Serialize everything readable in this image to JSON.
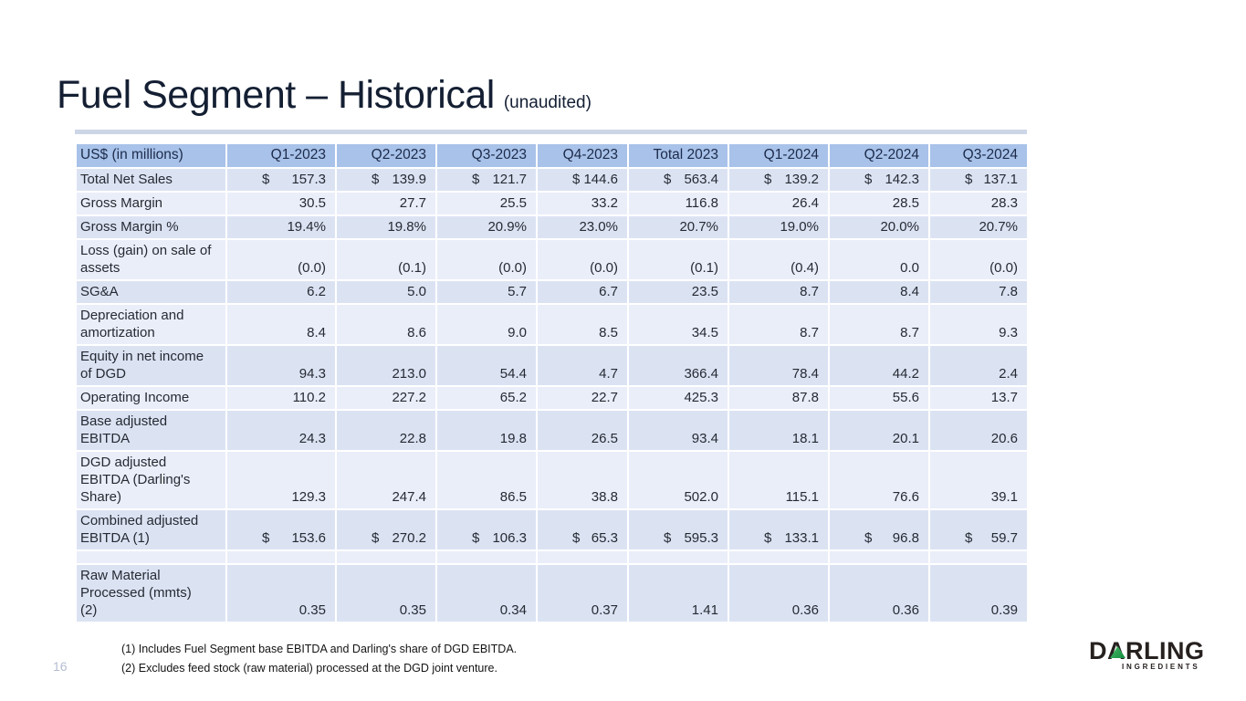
{
  "page": {
    "number": "16"
  },
  "title": {
    "main": "Fuel Segment – Historical",
    "suffix": "(unaudited)"
  },
  "table": {
    "dollar_sign": "$",
    "header": [
      "US$ (in millions)",
      "Q1-2023",
      "Q2-2023",
      "Q3-2023",
      "Q4-2023",
      "Total 2023",
      "Q1-2024",
      "Q2-2024",
      "Q3-2024"
    ],
    "rows": [
      {
        "label": "Total Net Sales",
        "currency": true,
        "values": [
          "157.3",
          "139.9",
          "121.7",
          "144.6",
          "563.4",
          "139.2",
          "142.3",
          "137.1"
        ]
      },
      {
        "label": "Gross Margin",
        "values": [
          "30.5",
          "27.7",
          "25.5",
          "33.2",
          "116.8",
          "26.4",
          "28.5",
          "28.3"
        ]
      },
      {
        "label": "Gross Margin %",
        "values": [
          "19.4%",
          "19.8%",
          "20.9%",
          "23.0%",
          "20.7%",
          "19.0%",
          "20.0%",
          "20.7%"
        ]
      },
      {
        "label": "Loss (gain) on sale of\nassets",
        "values": [
          "(0.0)",
          "(0.1)",
          "(0.0)",
          "(0.0)",
          "(0.1)",
          "(0.4)",
          "0.0",
          "(0.0)"
        ]
      },
      {
        "label": "SG&A",
        "values": [
          "6.2",
          "5.0",
          "5.7",
          "6.7",
          "23.5",
          "8.7",
          "8.4",
          "7.8"
        ]
      },
      {
        "label": "Depreciation and\namortization",
        "values": [
          "8.4",
          "8.6",
          "9.0",
          "8.5",
          "34.5",
          "8.7",
          "8.7",
          "9.3"
        ]
      },
      {
        "label": "Equity in net income\nof DGD",
        "values": [
          "94.3",
          "213.0",
          "54.4",
          "4.7",
          "366.4",
          "78.4",
          "44.2",
          "2.4"
        ]
      },
      {
        "label": "Operating Income",
        "values": [
          "110.2",
          "227.2",
          "65.2",
          "22.7",
          "425.3",
          "87.8",
          "55.6",
          "13.7"
        ]
      },
      {
        "label": "Base adjusted\nEBITDA",
        "values": [
          "24.3",
          "22.8",
          "19.8",
          "26.5",
          "93.4",
          "18.1",
          "20.1",
          "20.6"
        ]
      },
      {
        "label": "DGD adjusted\nEBITDA (Darling's\nShare)",
        "values": [
          "129.3",
          "247.4",
          "86.5",
          "38.8",
          "502.0",
          "115.1",
          "76.6",
          "39.1"
        ]
      },
      {
        "label": "Combined adjusted\nEBITDA (1)",
        "currency": true,
        "values": [
          "153.6",
          "270.2",
          "106.3",
          "65.3",
          "595.3",
          "133.1",
          "96.8",
          "59.7"
        ]
      },
      {
        "label": "",
        "spacer": true,
        "values": [
          "",
          "",
          "",
          "",
          "",
          "",
          "",
          ""
        ]
      },
      {
        "label": "Raw Material\nProcessed (mmts)\n(2)",
        "values": [
          "0.35",
          "0.35",
          "0.34",
          "0.37",
          "1.41",
          "0.36",
          "0.36",
          "0.39"
        ]
      }
    ]
  },
  "footnotes": [
    "(1) Includes Fuel Segment base EBITDA and Darling's share of DGD EBITDA.",
    "(2) Excludes feed stock (raw material) processed at the DGD joint venture."
  ],
  "logo": {
    "wordmark": "DARLING",
    "subtitle": "INGREDIENTS"
  },
  "colors": {
    "header_bg": "#a8c2e9",
    "band_dark": "#dbe3f3",
    "band_light": "#eaeef9",
    "title_text": "#141f33",
    "logo_green": "#2aa150"
  }
}
